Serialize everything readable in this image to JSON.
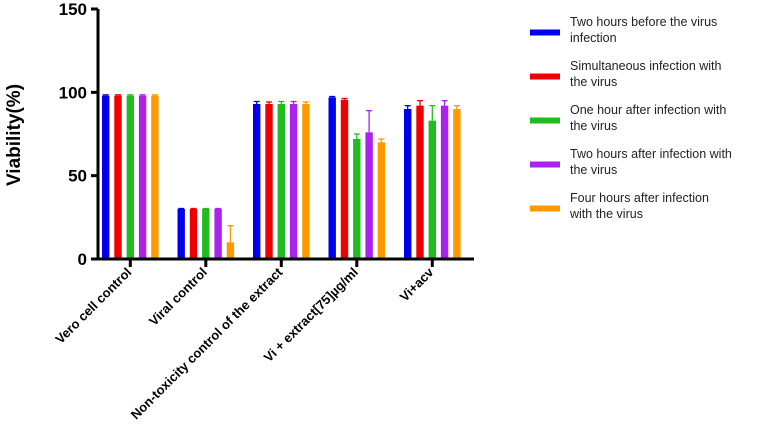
{
  "chart_data": {
    "type": "bar",
    "title": "",
    "xlabel": "",
    "ylabel": "Viability(%)",
    "ylim": [
      0,
      150
    ],
    "yticks": [
      "0",
      "50",
      "100",
      "150"
    ],
    "categories": [
      "Vero cell control",
      "Viral control",
      "Non-toxicity control of the extract",
      "Vi + extract[75]µg/ml",
      "Vi+acv"
    ],
    "series": [
      {
        "name": "Two hours before the virus infection",
        "color": "#0000ee",
        "values": [
          98,
          30,
          93,
          97,
          90
        ],
        "errors": [
          0.5,
          0.3,
          1.5,
          0.5,
          2
        ]
      },
      {
        "name": "Simultaneous infection with the virus",
        "color": "#ee0000",
        "values": [
          98,
          30,
          93,
          95.5,
          92
        ],
        "errors": [
          0.5,
          0.3,
          1.2,
          0.8,
          3
        ]
      },
      {
        "name": "One hour after infection with the virus",
        "color": "#22bb22",
        "values": [
          98,
          30,
          93,
          72,
          83
        ],
        "errors": [
          0.5,
          0.3,
          1.5,
          3,
          9
        ]
      },
      {
        "name": "Two hours after infection with the virus",
        "color": "#aa22ee",
        "values": [
          98,
          30,
          93,
          76,
          92
        ],
        "errors": [
          0.5,
          0.3,
          1.5,
          13,
          3
        ]
      },
      {
        "name": "Four hours after infection with the virus",
        "color": "#ff9900",
        "values": [
          98,
          10,
          93,
          70,
          90
        ],
        "errors": [
          0.5,
          10,
          1.2,
          2,
          2
        ]
      }
    ],
    "legend_position": "right",
    "grid": false
  }
}
